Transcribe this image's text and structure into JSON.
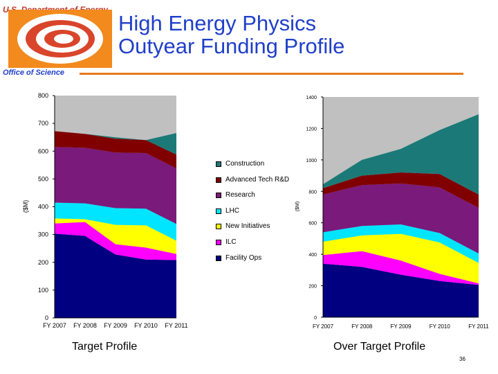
{
  "header": {
    "org": "U.S. Department of Energy",
    "title_line1": "High Energy Physics",
    "title_line2": "Outyear Funding Profile",
    "office": "Office of Science"
  },
  "colors": {
    "accent_rule": "#e47a1b",
    "title": "#1f3fc9",
    "logo_red": "#d9452b"
  },
  "legend": [
    {
      "name": "Construction",
      "color": "#1b7a78"
    },
    {
      "name": "Advanced Tech R&D",
      "color": "#800000"
    },
    {
      "name": "Research",
      "color": "#7a1a7a"
    },
    {
      "name": "LHC",
      "color": "#00e5ff"
    },
    {
      "name": "New Initiatives",
      "color": "#ffff00"
    },
    {
      "name": "ILC",
      "color": "#ff00ff"
    },
    {
      "name": "Facility Ops",
      "color": "#000080"
    }
  ],
  "captions": {
    "left": "Target Profile",
    "right": "Over Target Profile"
  },
  "page_number": "36",
  "chart_data": [
    {
      "type": "area",
      "stacked": true,
      "caption": "Target Profile",
      "ylabel": "($M)",
      "xlabel": "",
      "categories": [
        "FY 2007",
        "FY 2008",
        "FY 2009",
        "FY 2010",
        "FY 2011"
      ],
      "ylim": [
        0,
        800
      ],
      "yticks": [
        0,
        100,
        200,
        300,
        400,
        500,
        600,
        700,
        800
      ],
      "total_envelope": 800,
      "envelope_color": "#c0c0c0",
      "series": [
        {
          "name": "Facility Ops",
          "color": "#000080",
          "values": [
            303,
            295,
            228,
            210,
            208
          ]
        },
        {
          "name": "ILC",
          "color": "#ff00ff",
          "values": [
            37,
            50,
            37,
            43,
            22
          ]
        },
        {
          "name": "New Initiatives",
          "color": "#ffff00",
          "values": [
            18,
            10,
            70,
            80,
            48
          ]
        },
        {
          "name": "LHC",
          "color": "#00e5ff",
          "values": [
            57,
            57,
            60,
            60,
            60
          ]
        },
        {
          "name": "Research",
          "color": "#7a1a7a",
          "values": [
            200,
            200,
            200,
            200,
            200
          ]
        },
        {
          "name": "Advanced Tech R&D",
          "color": "#800000",
          "values": [
            57,
            50,
            50,
            47,
            50
          ]
        },
        {
          "name": "Construction",
          "color": "#1b7a78",
          "values": [
            0,
            0,
            5,
            0,
            77
          ]
        }
      ]
    },
    {
      "type": "area",
      "stacked": true,
      "caption": "Over Target Profile",
      "ylabel": "($M)",
      "xlabel": "",
      "categories": [
        "FY 2007",
        "FY 2008",
        "FY 2009",
        "FY 2010",
        "FY 2011"
      ],
      "ylim": [
        0,
        1400
      ],
      "yticks": [
        0,
        200,
        400,
        600,
        800,
        1000,
        1200,
        1400
      ],
      "total_envelope": 1400,
      "envelope_color": "#c0c0c0",
      "series": [
        {
          "name": "Facility Ops",
          "color": "#000080",
          "values": [
            340,
            320,
            270,
            230,
            205
          ]
        },
        {
          "name": "ILC",
          "color": "#ff00ff",
          "values": [
            55,
            100,
            90,
            45,
            10
          ]
        },
        {
          "name": "New Initiatives",
          "color": "#ffff00",
          "values": [
            85,
            100,
            170,
            200,
            130
          ]
        },
        {
          "name": "LHC",
          "color": "#00e5ff",
          "values": [
            60,
            60,
            60,
            60,
            60
          ]
        },
        {
          "name": "Research",
          "color": "#7a1a7a",
          "values": [
            240,
            260,
            260,
            290,
            290
          ]
        },
        {
          "name": "Advanced Tech R&D",
          "color": "#800000",
          "values": [
            40,
            60,
            70,
            85,
            85
          ]
        },
        {
          "name": "Construction",
          "color": "#1b7a78",
          "values": [
            25,
            100,
            150,
            280,
            510
          ]
        }
      ]
    }
  ]
}
